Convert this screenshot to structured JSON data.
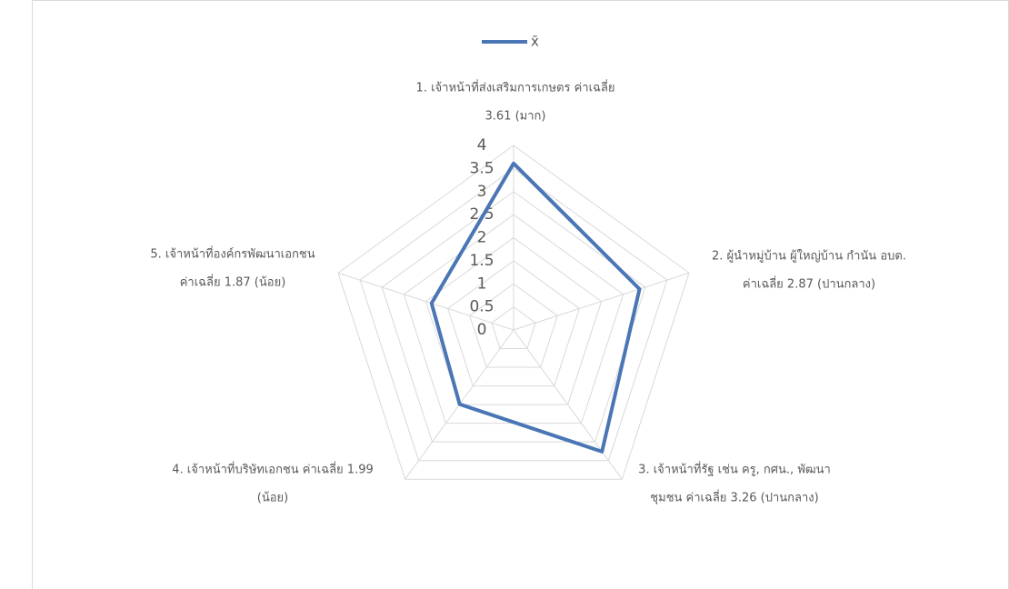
{
  "chart_data": {
    "type": "radar",
    "categories": [
      [
        "1. เจ้าหน้าที่ส่งเสริมการเกษตร ค่าเฉลี่ย",
        "3.61 (มาก)"
      ],
      [
        "2. ผู้นำหมู่บ้าน ผู้ใหญ่บ้าน กำนัน อบต.",
        "ค่าเฉลี่ย 2.87 (ปานกลาง)"
      ],
      [
        "3. เจ้าหน้าที่รัฐ เช่น ครู, กศน., พัฒนา",
        "ชุมชน ค่าเฉลี่ย 3.26 (ปานกลาง)"
      ],
      [
        "4. เจ้าหน้าที่บริษัทเอกชน  ค่าเฉลี่ย 1.99",
        "(น้อย)"
      ],
      [
        "5. เจ้าหน้าที่องค์กรพัฒนาเอกชน",
        "ค่าเฉลี่ย 1.87 (น้อย)"
      ]
    ],
    "series": [
      {
        "name": "x̄",
        "color": "#4a76b5",
        "values": [
          3.61,
          2.87,
          3.26,
          1.99,
          1.87
        ]
      }
    ],
    "ylim": [
      0,
      4
    ],
    "yticks": [
      0,
      0.5,
      1,
      1.5,
      2,
      2.5,
      3,
      3.5,
      4
    ],
    "grid": true,
    "legend": "top"
  }
}
